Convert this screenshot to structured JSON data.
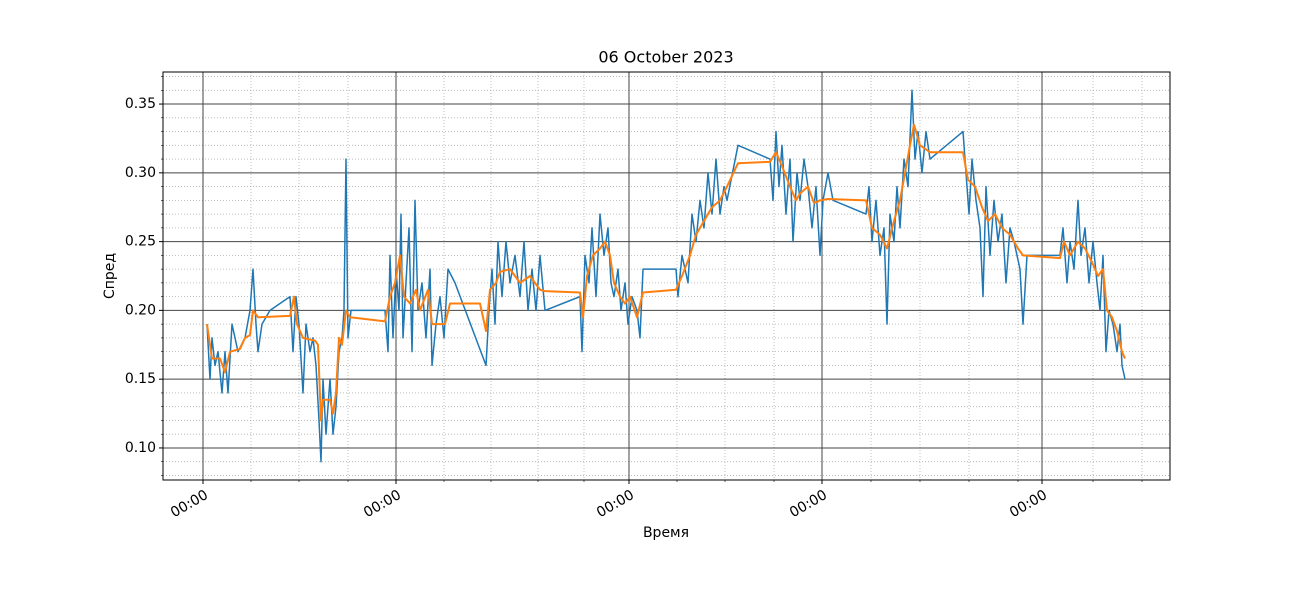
{
  "chart_data": {
    "type": "line",
    "title": "06 October 2023",
    "xlabel": "Время",
    "ylabel": "Спред",
    "xlim": [
      163,
      1170
    ],
    "ylim": [
      0.0767,
      0.3733
    ],
    "xticks": [
      {
        "value": 203,
        "label": "00:00"
      },
      {
        "value": 396,
        "label": "00:00"
      },
      {
        "value": 629,
        "label": "00:00"
      },
      {
        "value": 822,
        "label": "00:00"
      },
      {
        "value": 1042,
        "label": "00:00"
      }
    ],
    "minor_xticks": [
      251,
      299,
      348,
      444,
      491,
      538,
      584,
      677,
      725,
      774,
      871,
      920,
      969,
      1018,
      1093,
      1142
    ],
    "yticks": [
      {
        "value": 0.1,
        "label": "0.10"
      },
      {
        "value": 0.15,
        "label": "0.15"
      },
      {
        "value": 0.2,
        "label": "0.20"
      },
      {
        "value": 0.25,
        "label": "0.25"
      },
      {
        "value": 0.3,
        "label": "0.30"
      },
      {
        "value": 0.35,
        "label": "0.35"
      }
    ],
    "minor_yticks": [
      0.08,
      0.09,
      0.11,
      0.12,
      0.13,
      0.14,
      0.16,
      0.17,
      0.18,
      0.19,
      0.21,
      0.22,
      0.23,
      0.24,
      0.26,
      0.27,
      0.28,
      0.29,
      0.31,
      0.32,
      0.33,
      0.34,
      0.36,
      0.37
    ],
    "grid": true,
    "series": [
      {
        "color": "#1f77b4",
        "x": [
          207,
          210,
          212,
          215,
          218,
          222,
          225,
          228,
          232,
          238,
          245,
          250,
          253,
          256,
          258,
          262,
          270,
          290,
          293,
          296,
          299,
          303,
          306,
          310,
          313,
          316,
          319,
          321,
          323,
          326,
          330,
          333,
          336,
          339,
          342,
          344,
          346,
          348,
          351,
          355,
          385,
          388,
          390,
          393,
          396,
          399,
          401,
          403,
          406,
          409,
          412,
          415,
          418,
          422,
          426,
          430,
          432,
          436,
          440,
          444,
          448,
          455,
          486,
          489,
          492,
          495,
          498,
          502,
          506,
          510,
          515,
          520,
          524,
          528,
          532,
          536,
          540,
          545,
          580,
          582,
          585,
          589,
          592,
          596,
          600,
          604,
          608,
          611,
          614,
          618,
          621,
          625,
          628,
          632,
          637,
          640,
          643,
          676,
          678,
          682,
          688,
          692,
          696,
          700,
          704,
          708,
          712,
          716,
          720,
          724,
          727,
          738,
          770,
          773,
          776,
          779,
          782,
          786,
          790,
          793,
          797,
          800,
          804,
          808,
          812,
          816,
          820,
          823,
          828,
          833,
          866,
          869,
          872,
          876,
          880,
          884,
          887,
          890,
          894,
          897,
          900,
          904,
          908,
          912,
          915,
          918,
          922,
          926,
          930,
          963,
          966,
          969,
          972,
          976,
          980,
          983,
          986,
          990,
          994,
          998,
          1002,
          1006,
          1010,
          1014,
          1020,
          1023,
          1027,
          1060,
          1063,
          1067,
          1070,
          1074,
          1078,
          1081,
          1085,
          1089,
          1093,
          1097,
          1100,
          1103,
          1106,
          1109,
          1113,
          1117,
          1120,
          1122,
          1125
        ],
        "values": [
          0.19,
          0.15,
          0.18,
          0.16,
          0.17,
          0.14,
          0.17,
          0.14,
          0.19,
          0.17,
          0.18,
          0.2,
          0.23,
          0.19,
          0.17,
          0.19,
          0.2,
          0.21,
          0.17,
          0.21,
          0.19,
          0.14,
          0.19,
          0.17,
          0.18,
          0.16,
          0.12,
          0.09,
          0.15,
          0.11,
          0.15,
          0.11,
          0.13,
          0.17,
          0.18,
          0.2,
          0.31,
          0.18,
          0.2,
          0.2,
          0.2,
          0.17,
          0.24,
          0.18,
          0.23,
          0.2,
          0.27,
          0.18,
          0.22,
          0.26,
          0.17,
          0.28,
          0.2,
          0.22,
          0.18,
          0.23,
          0.16,
          0.19,
          0.21,
          0.18,
          0.23,
          0.22,
          0.16,
          0.2,
          0.23,
          0.19,
          0.25,
          0.21,
          0.25,
          0.22,
          0.24,
          0.21,
          0.25,
          0.2,
          0.23,
          0.2,
          0.24,
          0.2,
          0.21,
          0.17,
          0.24,
          0.22,
          0.26,
          0.21,
          0.27,
          0.24,
          0.26,
          0.22,
          0.21,
          0.23,
          0.2,
          0.22,
          0.19,
          0.21,
          0.2,
          0.18,
          0.23,
          0.23,
          0.21,
          0.24,
          0.22,
          0.27,
          0.25,
          0.28,
          0.26,
          0.3,
          0.27,
          0.31,
          0.27,
          0.29,
          0.28,
          0.32,
          0.31,
          0.28,
          0.33,
          0.29,
          0.32,
          0.27,
          0.31,
          0.25,
          0.3,
          0.28,
          0.31,
          0.29,
          0.26,
          0.29,
          0.24,
          0.28,
          0.3,
          0.28,
          0.27,
          0.29,
          0.25,
          0.28,
          0.24,
          0.26,
          0.19,
          0.27,
          0.25,
          0.29,
          0.26,
          0.31,
          0.29,
          0.36,
          0.31,
          0.33,
          0.3,
          0.33,
          0.31,
          0.33,
          0.3,
          0.27,
          0.31,
          0.28,
          0.26,
          0.21,
          0.29,
          0.24,
          0.28,
          0.25,
          0.27,
          0.22,
          0.26,
          0.25,
          0.23,
          0.19,
          0.24,
          0.24,
          0.26,
          0.22,
          0.25,
          0.23,
          0.28,
          0.24,
          0.26,
          0.22,
          0.25,
          0.22,
          0.2,
          0.24,
          0.17,
          0.2,
          0.19,
          0.17,
          0.19,
          0.16,
          0.15
        ]
      },
      {
        "color": "#ff7f0e",
        "x": [
          207,
          212,
          220,
          225,
          230,
          240,
          245,
          250,
          253,
          258,
          290,
          294,
          297,
          303,
          315,
          318,
          321,
          323,
          330,
          333,
          336,
          339,
          342,
          346,
          350,
          385,
          390,
          395,
          400,
          404,
          410,
          416,
          420,
          428,
          432,
          445,
          450,
          480,
          486,
          490,
          496,
          500,
          510,
          520,
          530,
          540,
          545,
          580,
          583,
          587,
          593,
          600,
          605,
          610,
          614,
          620,
          625,
          630,
          637,
          643,
          676,
          682,
          690,
          696,
          704,
          712,
          720,
          727,
          738,
          770,
          776,
          782,
          790,
          796,
          800,
          808,
          814,
          820,
          828,
          866,
          872,
          880,
          887,
          894,
          900,
          905,
          910,
          914,
          920,
          930,
          963,
          968,
          975,
          982,
          988,
          995,
          1002,
          1010,
          1018,
          1023,
          1060,
          1064,
          1070,
          1078,
          1085,
          1092,
          1098,
          1103,
          1107,
          1112,
          1117,
          1122,
          1125
        ],
        "values": [
          0.19,
          0.165,
          0.165,
          0.155,
          0.17,
          0.172,
          0.18,
          0.182,
          0.2,
          0.195,
          0.196,
          0.21,
          0.19,
          0.18,
          0.178,
          0.175,
          0.12,
          0.135,
          0.135,
          0.125,
          0.14,
          0.18,
          0.175,
          0.2,
          0.195,
          0.192,
          0.21,
          0.22,
          0.24,
          0.21,
          0.205,
          0.215,
          0.2,
          0.215,
          0.19,
          0.19,
          0.205,
          0.205,
          0.185,
          0.215,
          0.22,
          0.228,
          0.23,
          0.22,
          0.225,
          0.215,
          0.214,
          0.213,
          0.195,
          0.225,
          0.24,
          0.245,
          0.25,
          0.24,
          0.22,
          0.21,
          0.205,
          0.21,
          0.195,
          0.213,
          0.215,
          0.225,
          0.24,
          0.255,
          0.265,
          0.275,
          0.28,
          0.29,
          0.307,
          0.308,
          0.315,
          0.305,
          0.29,
          0.28,
          0.285,
          0.29,
          0.278,
          0.28,
          0.281,
          0.28,
          0.26,
          0.255,
          0.245,
          0.265,
          0.28,
          0.3,
          0.32,
          0.335,
          0.32,
          0.315,
          0.315,
          0.295,
          0.29,
          0.275,
          0.265,
          0.27,
          0.26,
          0.255,
          0.245,
          0.24,
          0.238,
          0.25,
          0.24,
          0.25,
          0.245,
          0.235,
          0.225,
          0.23,
          0.2,
          0.195,
          0.185,
          0.17,
          0.165
        ]
      }
    ]
  }
}
